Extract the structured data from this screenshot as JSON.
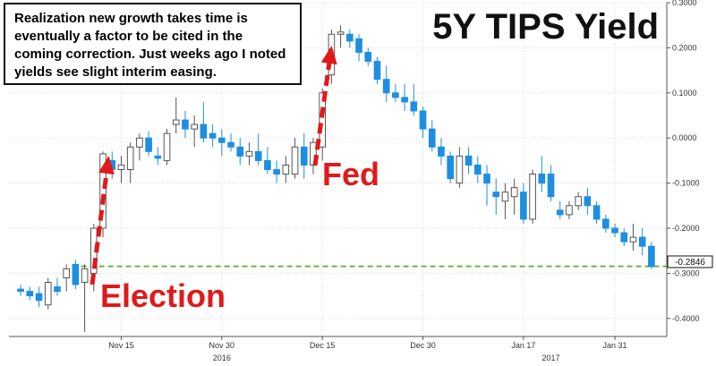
{
  "chart_data": {
    "type": "candlestick",
    "title": "5Y TIPS Yield",
    "note": "Realization new growth takes time is eventually a factor to be cited in the coming correction. Just weeks ago I noted yields see slight interim easing.",
    "annotations": [
      "Election",
      "Fed"
    ],
    "last_value_label": "-0.2846",
    "support_level": -0.2846,
    "ylim": [
      -0.44,
      0.3
    ],
    "yticks": [
      "0.3000",
      "0.2000",
      "0.1000",
      "0.0000",
      "-0.1000",
      "-0.2000",
      "-0.3000",
      "-0.4000"
    ],
    "ytick_values": [
      0.3,
      0.2,
      0.1,
      0.0,
      -0.1,
      -0.2,
      -0.3,
      -0.4
    ],
    "xticks": [
      {
        "label": "Nov 15",
        "index": 11
      },
      {
        "label": "Nov 30",
        "index": 22
      },
      {
        "label": "Dec 15",
        "index": 33
      },
      {
        "label": "Dec 30",
        "index": 44
      },
      {
        "label": "Jan 17",
        "index": 55
      },
      {
        "label": "Jan 31",
        "index": 65
      }
    ],
    "year_labels": [
      {
        "label": "2016",
        "index": 22
      },
      {
        "label": "2017",
        "index": 58
      }
    ],
    "candles": [
      {
        "o": -0.335,
        "h": -0.325,
        "l": -0.35,
        "c": -0.34
      },
      {
        "o": -0.34,
        "h": -0.33,
        "l": -0.36,
        "c": -0.35
      },
      {
        "o": -0.345,
        "h": -0.33,
        "l": -0.375,
        "c": -0.36
      },
      {
        "o": -0.37,
        "h": -0.31,
        "l": -0.38,
        "c": -0.32
      },
      {
        "o": -0.33,
        "h": -0.31,
        "l": -0.35,
        "c": -0.34
      },
      {
        "o": -0.31,
        "h": -0.28,
        "l": -0.34,
        "c": -0.29
      },
      {
        "o": -0.28,
        "h": -0.27,
        "l": -0.335,
        "c": -0.325
      },
      {
        "o": -0.32,
        "h": -0.28,
        "l": -0.43,
        "c": -0.29
      },
      {
        "o": -0.3,
        "h": -0.19,
        "l": -0.34,
        "c": -0.2
      },
      {
        "o": -0.2,
        "h": -0.03,
        "l": -0.22,
        "c": -0.035
      },
      {
        "o": -0.05,
        "h": -0.03,
        "l": -0.09,
        "c": -0.07
      },
      {
        "o": -0.07,
        "h": -0.04,
        "l": -0.1,
        "c": -0.06
      },
      {
        "o": -0.07,
        "h": -0.01,
        "l": -0.1,
        "c": -0.02
      },
      {
        "o": -0.02,
        "h": 0.01,
        "l": -0.05,
        "c": 0.0
      },
      {
        "o": 0.0,
        "h": 0.015,
        "l": -0.04,
        "c": -0.03
      },
      {
        "o": -0.04,
        "h": -0.02,
        "l": -0.06,
        "c": -0.045
      },
      {
        "o": -0.05,
        "h": 0.02,
        "l": -0.06,
        "c": 0.01
      },
      {
        "o": 0.03,
        "h": 0.09,
        "l": 0.01,
        "c": 0.04
      },
      {
        "o": 0.04,
        "h": 0.06,
        "l": 0.0,
        "c": 0.02
      },
      {
        "o": 0.02,
        "h": 0.05,
        "l": -0.02,
        "c": 0.03
      },
      {
        "o": 0.03,
        "h": 0.08,
        "l": -0.01,
        "c": 0.0
      },
      {
        "o": 0.01,
        "h": 0.03,
        "l": -0.02,
        "c": 0.0
      },
      {
        "o": 0.0,
        "h": 0.02,
        "l": -0.04,
        "c": -0.01
      },
      {
        "o": -0.01,
        "h": 0.01,
        "l": -0.03,
        "c": -0.02
      },
      {
        "o": -0.02,
        "h": 0.0,
        "l": -0.06,
        "c": -0.04
      },
      {
        "o": -0.04,
        "h": -0.01,
        "l": -0.06,
        "c": -0.03
      },
      {
        "o": -0.03,
        "h": 0.01,
        "l": -0.06,
        "c": -0.05
      },
      {
        "o": -0.05,
        "h": -0.02,
        "l": -0.08,
        "c": -0.07
      },
      {
        "o": -0.07,
        "h": -0.05,
        "l": -0.1,
        "c": -0.08
      },
      {
        "o": -0.08,
        "h": -0.04,
        "l": -0.1,
        "c": -0.06
      },
      {
        "o": -0.08,
        "h": 0.0,
        "l": -0.09,
        "c": -0.02
      },
      {
        "o": -0.02,
        "h": 0.01,
        "l": -0.09,
        "c": -0.06
      },
      {
        "o": -0.06,
        "h": 0.0,
        "l": -0.08,
        "c": -0.01
      },
      {
        "o": -0.02,
        "h": 0.11,
        "l": -0.05,
        "c": 0.1
      },
      {
        "o": 0.14,
        "h": 0.24,
        "l": 0.12,
        "c": 0.23
      },
      {
        "o": 0.23,
        "h": 0.25,
        "l": 0.2,
        "c": 0.235
      },
      {
        "o": 0.23,
        "h": 0.24,
        "l": 0.2,
        "c": 0.215
      },
      {
        "o": 0.22,
        "h": 0.23,
        "l": 0.17,
        "c": 0.19
      },
      {
        "o": 0.19,
        "h": 0.2,
        "l": 0.16,
        "c": 0.17
      },
      {
        "o": 0.17,
        "h": 0.18,
        "l": 0.12,
        "c": 0.13
      },
      {
        "o": 0.13,
        "h": 0.16,
        "l": 0.08,
        "c": 0.1
      },
      {
        "o": 0.1,
        "h": 0.12,
        "l": 0.08,
        "c": 0.09
      },
      {
        "o": 0.09,
        "h": 0.12,
        "l": 0.06,
        "c": 0.08
      },
      {
        "o": 0.08,
        "h": 0.12,
        "l": 0.05,
        "c": 0.06
      },
      {
        "o": 0.06,
        "h": 0.07,
        "l": 0.0,
        "c": 0.02
      },
      {
        "o": 0.02,
        "h": 0.04,
        "l": -0.03,
        "c": -0.02
      },
      {
        "o": -0.02,
        "h": 0.0,
        "l": -0.06,
        "c": -0.04
      },
      {
        "o": -0.04,
        "h": -0.03,
        "l": -0.1,
        "c": -0.09
      },
      {
        "o": -0.1,
        "h": -0.02,
        "l": -0.11,
        "c": -0.04
      },
      {
        "o": -0.04,
        "h": -0.02,
        "l": -0.08,
        "c": -0.06
      },
      {
        "o": -0.06,
        "h": -0.04,
        "l": -0.1,
        "c": -0.08
      },
      {
        "o": -0.08,
        "h": -0.06,
        "l": -0.15,
        "c": -0.1
      },
      {
        "o": -0.12,
        "h": -0.09,
        "l": -0.17,
        "c": -0.13
      },
      {
        "o": -0.14,
        "h": -0.1,
        "l": -0.18,
        "c": -0.12
      },
      {
        "o": -0.13,
        "h": -0.09,
        "l": -0.17,
        "c": -0.11
      },
      {
        "o": -0.12,
        "h": -0.1,
        "l": -0.19,
        "c": -0.18
      },
      {
        "o": -0.18,
        "h": -0.07,
        "l": -0.19,
        "c": -0.08
      },
      {
        "o": -0.08,
        "h": -0.04,
        "l": -0.12,
        "c": -0.1
      },
      {
        "o": -0.08,
        "h": -0.06,
        "l": -0.14,
        "c": -0.13
      },
      {
        "o": -0.16,
        "h": -0.14,
        "l": -0.18,
        "c": -0.17
      },
      {
        "o": -0.17,
        "h": -0.14,
        "l": -0.18,
        "c": -0.15
      },
      {
        "o": -0.15,
        "h": -0.12,
        "l": -0.16,
        "c": -0.13
      },
      {
        "o": -0.13,
        "h": -0.11,
        "l": -0.17,
        "c": -0.15
      },
      {
        "o": -0.15,
        "h": -0.14,
        "l": -0.19,
        "c": -0.18
      },
      {
        "o": -0.18,
        "h": -0.17,
        "l": -0.21,
        "c": -0.2
      },
      {
        "o": -0.2,
        "h": -0.19,
        "l": -0.22,
        "c": -0.21
      },
      {
        "o": -0.21,
        "h": -0.2,
        "l": -0.24,
        "c": -0.23
      },
      {
        "o": -0.23,
        "h": -0.19,
        "l": -0.25,
        "c": -0.22
      },
      {
        "o": -0.22,
        "h": -0.2,
        "l": -0.26,
        "c": -0.24
      },
      {
        "o": -0.24,
        "h": -0.23,
        "l": -0.29,
        "c": -0.285
      }
    ],
    "colors": {
      "up_body": "#ffffff",
      "up_border": "#555555",
      "down_body": "#1e8ee0",
      "down_border": "#1e8ee0",
      "wick": "#555555",
      "arrow": "#e0191a",
      "support_line": "#6db33f"
    }
  }
}
